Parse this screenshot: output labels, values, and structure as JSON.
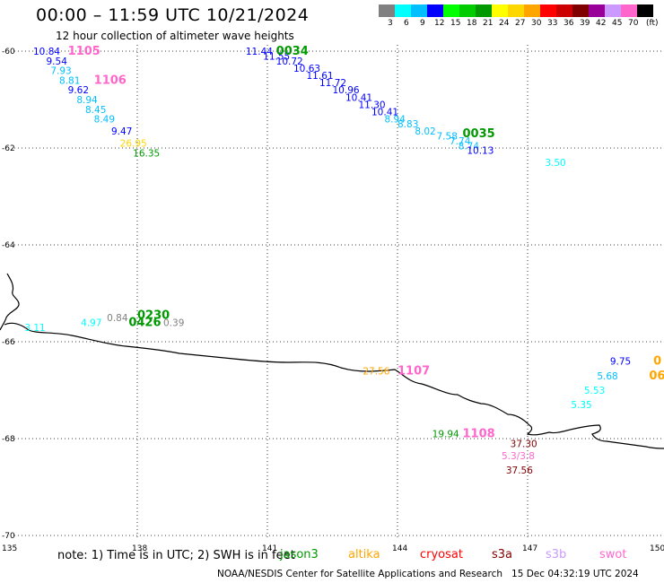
{
  "header": {
    "title": "00:00 – 11:59 UTC 10/21/2024",
    "subtitle": "12 hour collection of altimeter wave heights"
  },
  "scale": {
    "colors": [
      "#808080",
      "#00ffff",
      "#00bfff",
      "#0000ff",
      "#00ff00",
      "#00cc00",
      "#009900",
      "#ffff00",
      "#ffd700",
      "#ffa500",
      "#ff0000",
      "#cc0000",
      "#800000",
      "#990099",
      "#cc99ff",
      "#ff66cc",
      "#000000"
    ],
    "labels": [
      "3",
      "6",
      "9",
      "12",
      "15",
      "18",
      "21",
      "24",
      "27",
      "30",
      "33",
      "36",
      "39",
      "42",
      "45",
      "70"
    ],
    "unit": "(ft)"
  },
  "map": {
    "lat_labels": [
      "-60",
      "-62",
      "-64",
      "-66",
      "-68",
      "-70"
    ],
    "lon_labels": [
      "135",
      "138",
      "141",
      "144",
      "147",
      "150"
    ],
    "annotations": [
      {
        "text": "10.84",
        "color": "#0000ff",
        "lat": -60.0,
        "lon": 135.6
      },
      {
        "text": "1105",
        "color": "#ff66cc",
        "lat": -60.0,
        "lon": 136.4,
        "big": true
      },
      {
        "text": "9.54",
        "color": "#0000ff",
        "lat": -60.2,
        "lon": 135.9
      },
      {
        "text": "7.93",
        "color": "#00bfff",
        "lat": -60.4,
        "lon": 136.0
      },
      {
        "text": "8.81",
        "color": "#00bfff",
        "lat": -60.6,
        "lon": 136.2
      },
      {
        "text": "1106",
        "color": "#ff66cc",
        "lat": -60.6,
        "lon": 137.0,
        "big": true
      },
      {
        "text": "9.62",
        "color": "#0000ff",
        "lat": -60.8,
        "lon": 136.4
      },
      {
        "text": "8.94",
        "color": "#00bfff",
        "lat": -61.0,
        "lon": 136.6
      },
      {
        "text": "8.45",
        "color": "#00bfff",
        "lat": -61.2,
        "lon": 136.8
      },
      {
        "text": "8.49",
        "color": "#00bfff",
        "lat": -61.4,
        "lon": 137.0
      },
      {
        "text": "9.47",
        "color": "#0000ff",
        "lat": -61.65,
        "lon": 137.4
      },
      {
        "text": "26.95",
        "color": "#ffd700",
        "lat": -61.9,
        "lon": 137.6
      },
      {
        "text": "16.35",
        "color": "#009900",
        "lat": -62.1,
        "lon": 137.9
      },
      {
        "text": "11.44",
        "color": "#0000ff",
        "lat": -60.0,
        "lon": 140.5
      },
      {
        "text": "11.55",
        "color": "#0000ff",
        "lat": -60.1,
        "lon": 140.9
      },
      {
        "text": "0034",
        "color": "#009900",
        "lat": -60.0,
        "lon": 141.2,
        "big": true
      },
      {
        "text": "10.72",
        "color": "#0000ff",
        "lat": -60.2,
        "lon": 141.2
      },
      {
        "text": "10.63",
        "color": "#0000ff",
        "lat": -60.35,
        "lon": 141.6
      },
      {
        "text": "11.61",
        "color": "#0000ff",
        "lat": -60.5,
        "lon": 141.9
      },
      {
        "text": "11.72",
        "color": "#0000ff",
        "lat": -60.65,
        "lon": 142.2
      },
      {
        "text": "10.96",
        "color": "#0000ff",
        "lat": -60.8,
        "lon": 142.5
      },
      {
        "text": "10.41",
        "color": "#0000ff",
        "lat": -60.95,
        "lon": 142.8
      },
      {
        "text": "11.30",
        "color": "#0000ff",
        "lat": -61.1,
        "lon": 143.1
      },
      {
        "text": "10.41",
        "color": "#0000ff",
        "lat": -61.25,
        "lon": 143.4
      },
      {
        "text": "8.94",
        "color": "#00bfff",
        "lat": -61.4,
        "lon": 143.7
      },
      {
        "text": "8.83",
        "color": "#00bfff",
        "lat": -61.5,
        "lon": 144.0
      },
      {
        "text": "8.02",
        "color": "#00bfff",
        "lat": -61.65,
        "lon": 144.4
      },
      {
        "text": "7.58",
        "color": "#00bfff",
        "lat": -61.75,
        "lon": 144.9
      },
      {
        "text": "7.74",
        "color": "#00bfff",
        "lat": -61.85,
        "lon": 145.2
      },
      {
        "text": "0035",
        "color": "#009900",
        "lat": -61.7,
        "lon": 145.5,
        "big": true
      },
      {
        "text": "8.74",
        "color": "#00bfff",
        "lat": -61.95,
        "lon": 145.4
      },
      {
        "text": "10.13",
        "color": "#0000ff",
        "lat": -62.05,
        "lon": 145.6
      },
      {
        "text": "3.50",
        "color": "#00ffff",
        "lat": -62.3,
        "lon": 147.4
      },
      {
        "text": "3.11",
        "color": "#00ffff",
        "lat": -65.7,
        "lon": 135.4
      },
      {
        "text": "4.97",
        "color": "#00ffff",
        "lat": -65.6,
        "lon": 136.7
      },
      {
        "text": "0.84",
        "color": "#808080",
        "lat": -65.5,
        "lon": 137.3
      },
      {
        "text": "0230",
        "color": "#009900",
        "lat": -65.45,
        "lon": 138.0,
        "big": true
      },
      {
        "text": "0426",
        "color": "#009900",
        "lat": -65.6,
        "lon": 137.8,
        "big": true
      },
      {
        "text": "0.39",
        "color": "#808080",
        "lat": -65.6,
        "lon": 138.6
      },
      {
        "text": "27.56",
        "color": "#ffa500",
        "lat": -66.6,
        "lon": 143.2
      },
      {
        "text": "1107",
        "color": "#ff66cc",
        "lat": -66.6,
        "lon": 144.0,
        "big": true
      },
      {
        "text": "9.75",
        "color": "#0000ff",
        "lat": -66.4,
        "lon": 148.9
      },
      {
        "text": "0",
        "color": "#ffa500",
        "lat": -66.4,
        "lon": 149.9,
        "big": true
      },
      {
        "text": "5.68",
        "color": "#00bfff",
        "lat": -66.7,
        "lon": 148.6
      },
      {
        "text": "06",
        "color": "#ffa500",
        "lat": -66.7,
        "lon": 149.8,
        "big": true
      },
      {
        "text": "5.53",
        "color": "#00ffff",
        "lat": -67.0,
        "lon": 148.3
      },
      {
        "text": "5.35",
        "color": "#00ffff",
        "lat": -67.3,
        "lon": 148.0
      },
      {
        "text": "19.94",
        "color": "#009900",
        "lat": -67.9,
        "lon": 144.8
      },
      {
        "text": "1108",
        "color": "#ff66cc",
        "lat": -67.9,
        "lon": 145.5,
        "big": true
      },
      {
        "text": "37.30",
        "color": "#800000",
        "lat": -68.1,
        "lon": 146.6
      },
      {
        "text": "5.3/3.8",
        "color": "#ff66cc",
        "lat": -68.35,
        "lon": 146.4
      },
      {
        "text": "37.56",
        "color": "#800000",
        "lat": -68.65,
        "lon": 146.5
      }
    ]
  },
  "footer": {
    "note": "note: 1) Time is in UTC; 2) SWH is in feet",
    "legend": [
      {
        "label": "jason3",
        "color": "#009900"
      },
      {
        "label": "altika",
        "color": "#ffa500"
      },
      {
        "label": "cryosat",
        "color": "#ff0000"
      },
      {
        "label": "s3a",
        "color": "#800000"
      },
      {
        "label": "s3b",
        "color": "#cc99ff"
      },
      {
        "label": "swot",
        "color": "#ff66cc"
      }
    ],
    "credit": "NOAA/NESDIS Center for Satellite Applications and Research",
    "timestamp": "15 Dec 04:32:19 UTC 2024"
  }
}
